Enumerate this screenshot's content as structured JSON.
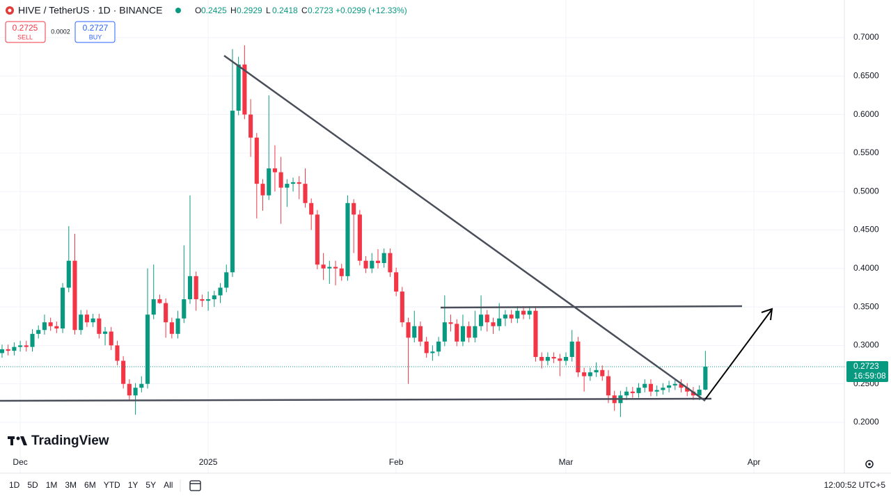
{
  "header": {
    "symbol": "HIVE / TetherUS · 1D · BINANCE",
    "ohlc": [
      {
        "label": "O",
        "value": "0.2425"
      },
      {
        "label": "H",
        "value": "0.2929"
      },
      {
        "label": "L",
        "value": "0.2418"
      },
      {
        "label": "C",
        "value": "0.2723"
      }
    ],
    "change": "+0.0299 (+12.33%)",
    "sell": {
      "price": "0.2725",
      "label": "SELL"
    },
    "spread": "0.0002",
    "buy": {
      "price": "0.2727",
      "label": "BUY"
    }
  },
  "chart_data": {
    "type": "candlestick",
    "up_color": "#089981",
    "down_color": "#f23645",
    "grid": true,
    "xlim": [
      -0.34,
      138.92
    ],
    "xticks": [
      {
        "value": 3,
        "label": "Dec"
      },
      {
        "value": 34,
        "label": "2025"
      },
      {
        "value": 65,
        "label": "Feb"
      },
      {
        "value": 93,
        "label": "Mar"
      },
      {
        "value": 124,
        "label": "Apr"
      }
    ],
    "ylim": [
      0.1611,
      0.7217
    ],
    "yticks": [
      {
        "value": 0.2,
        "label": "0.2000"
      },
      {
        "value": 0.25,
        "label": "0.2500"
      },
      {
        "value": 0.3,
        "label": "0.3000"
      },
      {
        "value": 0.35,
        "label": "0.3500"
      },
      {
        "value": 0.4,
        "label": "0.4000"
      },
      {
        "value": 0.45,
        "label": "0.4500"
      },
      {
        "value": 0.5,
        "label": "0.5000"
      },
      {
        "value": 0.55,
        "label": "0.5500"
      },
      {
        "value": 0.6,
        "label": "0.6000"
      },
      {
        "value": 0.65,
        "label": "0.6500"
      },
      {
        "value": 0.7,
        "label": "0.7000"
      }
    ],
    "last_price": 0.2723,
    "countdown": "16:59:08",
    "ohlc": [
      [
        0.29,
        0.301,
        0.284,
        0.295
      ],
      [
        0.295,
        0.301,
        0.287,
        0.293
      ],
      [
        0.293,
        0.304,
        0.287,
        0.298
      ],
      [
        0.298,
        0.306,
        0.292,
        0.3
      ],
      [
        0.3,
        0.306,
        0.292,
        0.298
      ],
      [
        0.298,
        0.321,
        0.292,
        0.315
      ],
      [
        0.315,
        0.326,
        0.309,
        0.32
      ],
      [
        0.32,
        0.34,
        0.314,
        0.33
      ],
      [
        0.33,
        0.336,
        0.319,
        0.325
      ],
      [
        0.325,
        0.331,
        0.316,
        0.322
      ],
      [
        0.322,
        0.381,
        0.316,
        0.375
      ],
      [
        0.375,
        0.455,
        0.369,
        0.41
      ],
      [
        0.41,
        0.445,
        0.314,
        0.32
      ],
      [
        0.32,
        0.346,
        0.314,
        0.34
      ],
      [
        0.34,
        0.346,
        0.324,
        0.33
      ],
      [
        0.33,
        0.341,
        0.324,
        0.335
      ],
      [
        0.335,
        0.341,
        0.309,
        0.315
      ],
      [
        0.315,
        0.324,
        0.3,
        0.318
      ],
      [
        0.318,
        0.324,
        0.294,
        0.3
      ],
      [
        0.3,
        0.306,
        0.274,
        0.28
      ],
      [
        0.28,
        0.286,
        0.244,
        0.25
      ],
      [
        0.25,
        0.256,
        0.229,
        0.235
      ],
      [
        0.235,
        0.251,
        0.21,
        0.245
      ],
      [
        0.245,
        0.26,
        0.239,
        0.25
      ],
      [
        0.25,
        0.4,
        0.244,
        0.34
      ],
      [
        0.34,
        0.405,
        0.334,
        0.36
      ],
      [
        0.36,
        0.366,
        0.354,
        0.355
      ],
      [
        0.355,
        0.361,
        0.31,
        0.33
      ],
      [
        0.33,
        0.336,
        0.309,
        0.315
      ],
      [
        0.315,
        0.345,
        0.309,
        0.335
      ],
      [
        0.335,
        0.43,
        0.329,
        0.36
      ],
      [
        0.36,
        0.495,
        0.354,
        0.39
      ],
      [
        0.39,
        0.396,
        0.345,
        0.36
      ],
      [
        0.36,
        0.366,
        0.35,
        0.358
      ],
      [
        0.358,
        0.37,
        0.345,
        0.36
      ],
      [
        0.36,
        0.371,
        0.35,
        0.365
      ],
      [
        0.365,
        0.381,
        0.355,
        0.375
      ],
      [
        0.375,
        0.405,
        0.369,
        0.395
      ],
      [
        0.395,
        0.685,
        0.389,
        0.605
      ],
      [
        0.605,
        0.675,
        0.599,
        0.665
      ],
      [
        0.665,
        0.69,
        0.594,
        0.6
      ],
      [
        0.6,
        0.62,
        0.545,
        0.57
      ],
      [
        0.57,
        0.576,
        0.465,
        0.51
      ],
      [
        0.51,
        0.516,
        0.475,
        0.495
      ],
      [
        0.495,
        0.625,
        0.489,
        0.53
      ],
      [
        0.53,
        0.56,
        0.5,
        0.525
      ],
      [
        0.525,
        0.545,
        0.458,
        0.505
      ],
      [
        0.505,
        0.516,
        0.48,
        0.51
      ],
      [
        0.51,
        0.518,
        0.5,
        0.512
      ],
      [
        0.512,
        0.52,
        0.49,
        0.51
      ],
      [
        0.51,
        0.53,
        0.479,
        0.485
      ],
      [
        0.485,
        0.491,
        0.45,
        0.47
      ],
      [
        0.47,
        0.476,
        0.399,
        0.405
      ],
      [
        0.405,
        0.42,
        0.385,
        0.4
      ],
      [
        0.4,
        0.41,
        0.38,
        0.402
      ],
      [
        0.402,
        0.41,
        0.378,
        0.4
      ],
      [
        0.4,
        0.406,
        0.384,
        0.39
      ],
      [
        0.39,
        0.495,
        0.384,
        0.485
      ],
      [
        0.485,
        0.49,
        0.42,
        0.47
      ],
      [
        0.47,
        0.476,
        0.404,
        0.41
      ],
      [
        0.41,
        0.416,
        0.394,
        0.4
      ],
      [
        0.4,
        0.42,
        0.394,
        0.41
      ],
      [
        0.41,
        0.425,
        0.4,
        0.407
      ],
      [
        0.407,
        0.426,
        0.401,
        0.42
      ],
      [
        0.42,
        0.426,
        0.389,
        0.395
      ],
      [
        0.395,
        0.401,
        0.364,
        0.37
      ],
      [
        0.37,
        0.376,
        0.324,
        0.33
      ],
      [
        0.33,
        0.336,
        0.25,
        0.31
      ],
      [
        0.31,
        0.345,
        0.304,
        0.325
      ],
      [
        0.325,
        0.331,
        0.299,
        0.305
      ],
      [
        0.305,
        0.311,
        0.284,
        0.29
      ],
      [
        0.29,
        0.3,
        0.28,
        0.292
      ],
      [
        0.292,
        0.311,
        0.286,
        0.305
      ],
      [
        0.305,
        0.365,
        0.299,
        0.33
      ],
      [
        0.33,
        0.34,
        0.318,
        0.328
      ],
      [
        0.328,
        0.334,
        0.299,
        0.305
      ],
      [
        0.305,
        0.34,
        0.299,
        0.325
      ],
      [
        0.325,
        0.331,
        0.304,
        0.31
      ],
      [
        0.31,
        0.345,
        0.304,
        0.325
      ],
      [
        0.325,
        0.365,
        0.319,
        0.34
      ],
      [
        0.34,
        0.346,
        0.318,
        0.33
      ],
      [
        0.33,
        0.336,
        0.315,
        0.325
      ],
      [
        0.325,
        0.355,
        0.319,
        0.335
      ],
      [
        0.335,
        0.346,
        0.325,
        0.34
      ],
      [
        0.34,
        0.346,
        0.329,
        0.335
      ],
      [
        0.335,
        0.351,
        0.329,
        0.345
      ],
      [
        0.345,
        0.351,
        0.334,
        0.34
      ],
      [
        0.34,
        0.351,
        0.334,
        0.345
      ],
      [
        0.345,
        0.351,
        0.279,
        0.285
      ],
      [
        0.285,
        0.291,
        0.27,
        0.28
      ],
      [
        0.28,
        0.291,
        0.274,
        0.285
      ],
      [
        0.285,
        0.291,
        0.277,
        0.283
      ],
      [
        0.283,
        0.289,
        0.26,
        0.28
      ],
      [
        0.28,
        0.291,
        0.274,
        0.285
      ],
      [
        0.285,
        0.32,
        0.279,
        0.305
      ],
      [
        0.305,
        0.311,
        0.259,
        0.265
      ],
      [
        0.265,
        0.271,
        0.24,
        0.26
      ],
      [
        0.26,
        0.271,
        0.254,
        0.265
      ],
      [
        0.265,
        0.278,
        0.259,
        0.268
      ],
      [
        0.268,
        0.274,
        0.254,
        0.26
      ],
      [
        0.26,
        0.268,
        0.225,
        0.235
      ],
      [
        0.235,
        0.241,
        0.215,
        0.225
      ],
      [
        0.225,
        0.241,
        0.207,
        0.235
      ],
      [
        0.235,
        0.246,
        0.229,
        0.24
      ],
      [
        0.24,
        0.246,
        0.232,
        0.238
      ],
      [
        0.238,
        0.251,
        0.232,
        0.245
      ],
      [
        0.245,
        0.256,
        0.239,
        0.25
      ],
      [
        0.25,
        0.256,
        0.234,
        0.24
      ],
      [
        0.24,
        0.248,
        0.234,
        0.242
      ],
      [
        0.242,
        0.251,
        0.236,
        0.245
      ],
      [
        0.245,
        0.254,
        0.239,
        0.248
      ],
      [
        0.248,
        0.256,
        0.242,
        0.25
      ],
      [
        0.25,
        0.256,
        0.239,
        0.245
      ],
      [
        0.245,
        0.251,
        0.234,
        0.24
      ],
      [
        0.24,
        0.246,
        0.229,
        0.235
      ],
      [
        0.235,
        0.248,
        0.229,
        0.2425
      ],
      [
        0.2425,
        0.2929,
        0.2418,
        0.2723
      ]
    ]
  },
  "logo": "TradingView",
  "toolbar": {
    "ranges": [
      "1D",
      "5D",
      "1M",
      "3M",
      "6M",
      "YTD",
      "1Y",
      "5Y",
      "All"
    ],
    "time": "12:00:52 UTC+5"
  }
}
